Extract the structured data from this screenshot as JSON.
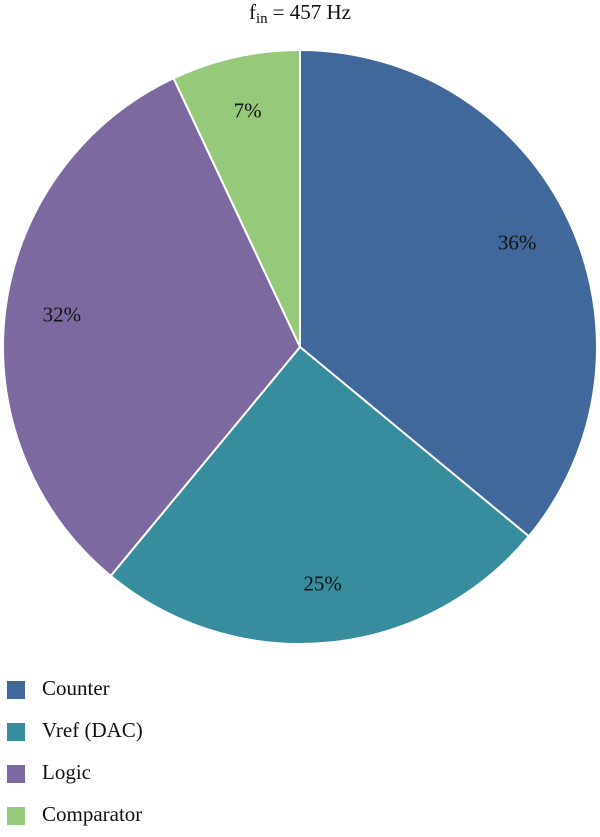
{
  "chart_data": {
    "type": "pie",
    "title": [
      "f",
      "in",
      "= 457 Hz"
    ],
    "categories": [
      "Counter",
      "Vref (DAC)",
      "Logic",
      "Comparator"
    ],
    "values": [
      36,
      25,
      32,
      7
    ],
    "value_labels": [
      "36%",
      "25%",
      "32%",
      "7%"
    ],
    "colors": [
      "#41689a",
      "#378c9e",
      "#7b69a0",
      "#97c97a"
    ],
    "legend": "bottom-left"
  }
}
